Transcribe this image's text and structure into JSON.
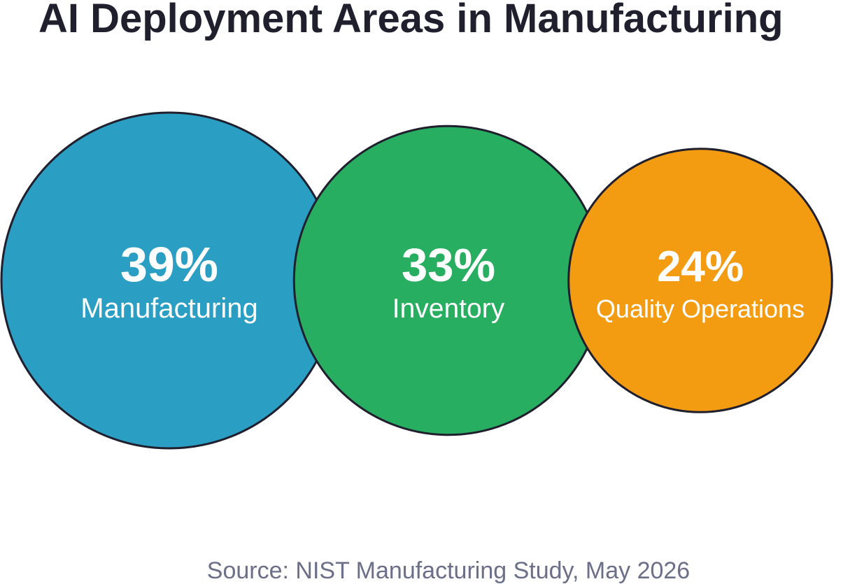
{
  "chart_data": {
    "type": "bubble",
    "title": "AI Deployment Areas in Manufacturing",
    "source": "Source: NIST Manufacturing Study, May 2026",
    "unit": "%",
    "items": [
      {
        "label": "Manufacturing",
        "value": 39,
        "display": "39%",
        "color": "#2b9ec4"
      },
      {
        "label": "Inventory",
        "value": 33,
        "display": "33%",
        "color": "#27ae60"
      },
      {
        "label": "Quality Operations",
        "value": 24,
        "display": "24%",
        "color": "#f39c12"
      }
    ],
    "colors": {
      "outline": "#1f1f2e",
      "label_text": "#ffffff",
      "title_text": "#1f1f2e",
      "source_text": "#6b6f88"
    }
  }
}
